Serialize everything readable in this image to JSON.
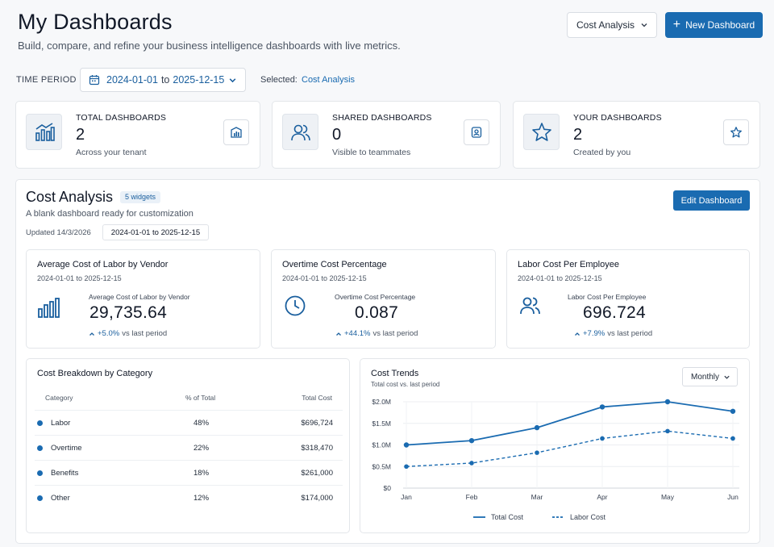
{
  "header": {
    "title": "My Dashboards",
    "subtitle": "Build, compare, and refine your business intelligence dashboards with live metrics.",
    "dashboard_select": "Cost Analysis",
    "new_button": "New Dashboard"
  },
  "filters": {
    "time_period_label": "TIME PERIOD",
    "start": "2024-01-01",
    "to": "to",
    "end": "2025-12-15",
    "selected_label": "Selected:",
    "selected_value": "Cost Analysis"
  },
  "stats": [
    {
      "label": "TOTAL DASHBOARDS",
      "value": "2",
      "caption": "Across your tenant",
      "icon": "bar-chart-icon"
    },
    {
      "label": "SHARED DASHBOARDS",
      "value": "0",
      "caption": "Visible to teammates",
      "icon": "users-icon"
    },
    {
      "label": "YOUR DASHBOARDS",
      "value": "2",
      "caption": "Created by you",
      "icon": "star-icon"
    }
  ],
  "dashboard": {
    "title": "Cost Analysis",
    "badge": "5 widgets",
    "description": "A blank dashboard ready for customization",
    "updated": "Updated 14/3/2026",
    "range": "2024-01-01 to 2025-12-15",
    "edit_button": "Edit Dashboard"
  },
  "kpis": [
    {
      "title": "Average Cost of Labor by Vendor",
      "range": "2024-01-01 to 2025-12-15",
      "sub": "Average Cost of Labor by Vendor",
      "value": "29,735.64",
      "delta": "+5.0%",
      "delta_suffix": "vs last period",
      "icon": "bar-chart-icon"
    },
    {
      "title": "Overtime Cost Percentage",
      "range": "2024-01-01 to 2025-12-15",
      "sub": "Overtime Cost Percentage",
      "value": "0.087",
      "delta": "+44.1%",
      "delta_suffix": "vs last period",
      "icon": "clock-icon"
    },
    {
      "title": "Labor Cost Per Employee",
      "range": "2024-01-01 to 2025-12-15",
      "sub": "Labor Cost Per Employee",
      "value": "696.724",
      "delta": "+7.9%",
      "delta_suffix": "vs last period",
      "icon": "users-icon"
    }
  ],
  "breakdown": {
    "title": "Cost Breakdown by Category",
    "headers": [
      "Category",
      "% of Total",
      "Total Cost"
    ],
    "rows": [
      {
        "category": "Labor",
        "pct": "48%",
        "cost": "$696,724"
      },
      {
        "category": "Overtime",
        "pct": "22%",
        "cost": "$318,470"
      },
      {
        "category": "Benefits",
        "pct": "18%",
        "cost": "$261,000"
      },
      {
        "category": "Other",
        "pct": "12%",
        "cost": "$174,000"
      }
    ]
  },
  "trends": {
    "title": "Cost Trends",
    "subtitle": "Total cost vs. last period",
    "period_select": "Monthly"
  },
  "chart_data": {
    "type": "line",
    "title": "Cost Trends",
    "subtitle": "Total cost vs. last period",
    "categories": [
      "Jan",
      "Feb",
      "Mar",
      "Apr",
      "May",
      "Jun"
    ],
    "y_ticks": [
      "$0",
      "$0.5M",
      "$1.0M",
      "$1.5M",
      "$2.0M"
    ],
    "ylim": [
      0,
      2.0
    ],
    "y_unit": "$M",
    "grid": true,
    "legend_position": "bottom",
    "series": [
      {
        "name": "Total Cost",
        "values": [
          1.0,
          1.1,
          1.4,
          1.88,
          2.0,
          1.78
        ],
        "style": "solid",
        "color": "#1a6bb1"
      },
      {
        "name": "Labor Cost",
        "values": [
          0.5,
          0.58,
          0.82,
          1.15,
          1.32,
          1.15
        ],
        "style": "dashed",
        "color": "#1a6bb1"
      }
    ]
  },
  "colors": {
    "accent": "#1a6bb1"
  }
}
